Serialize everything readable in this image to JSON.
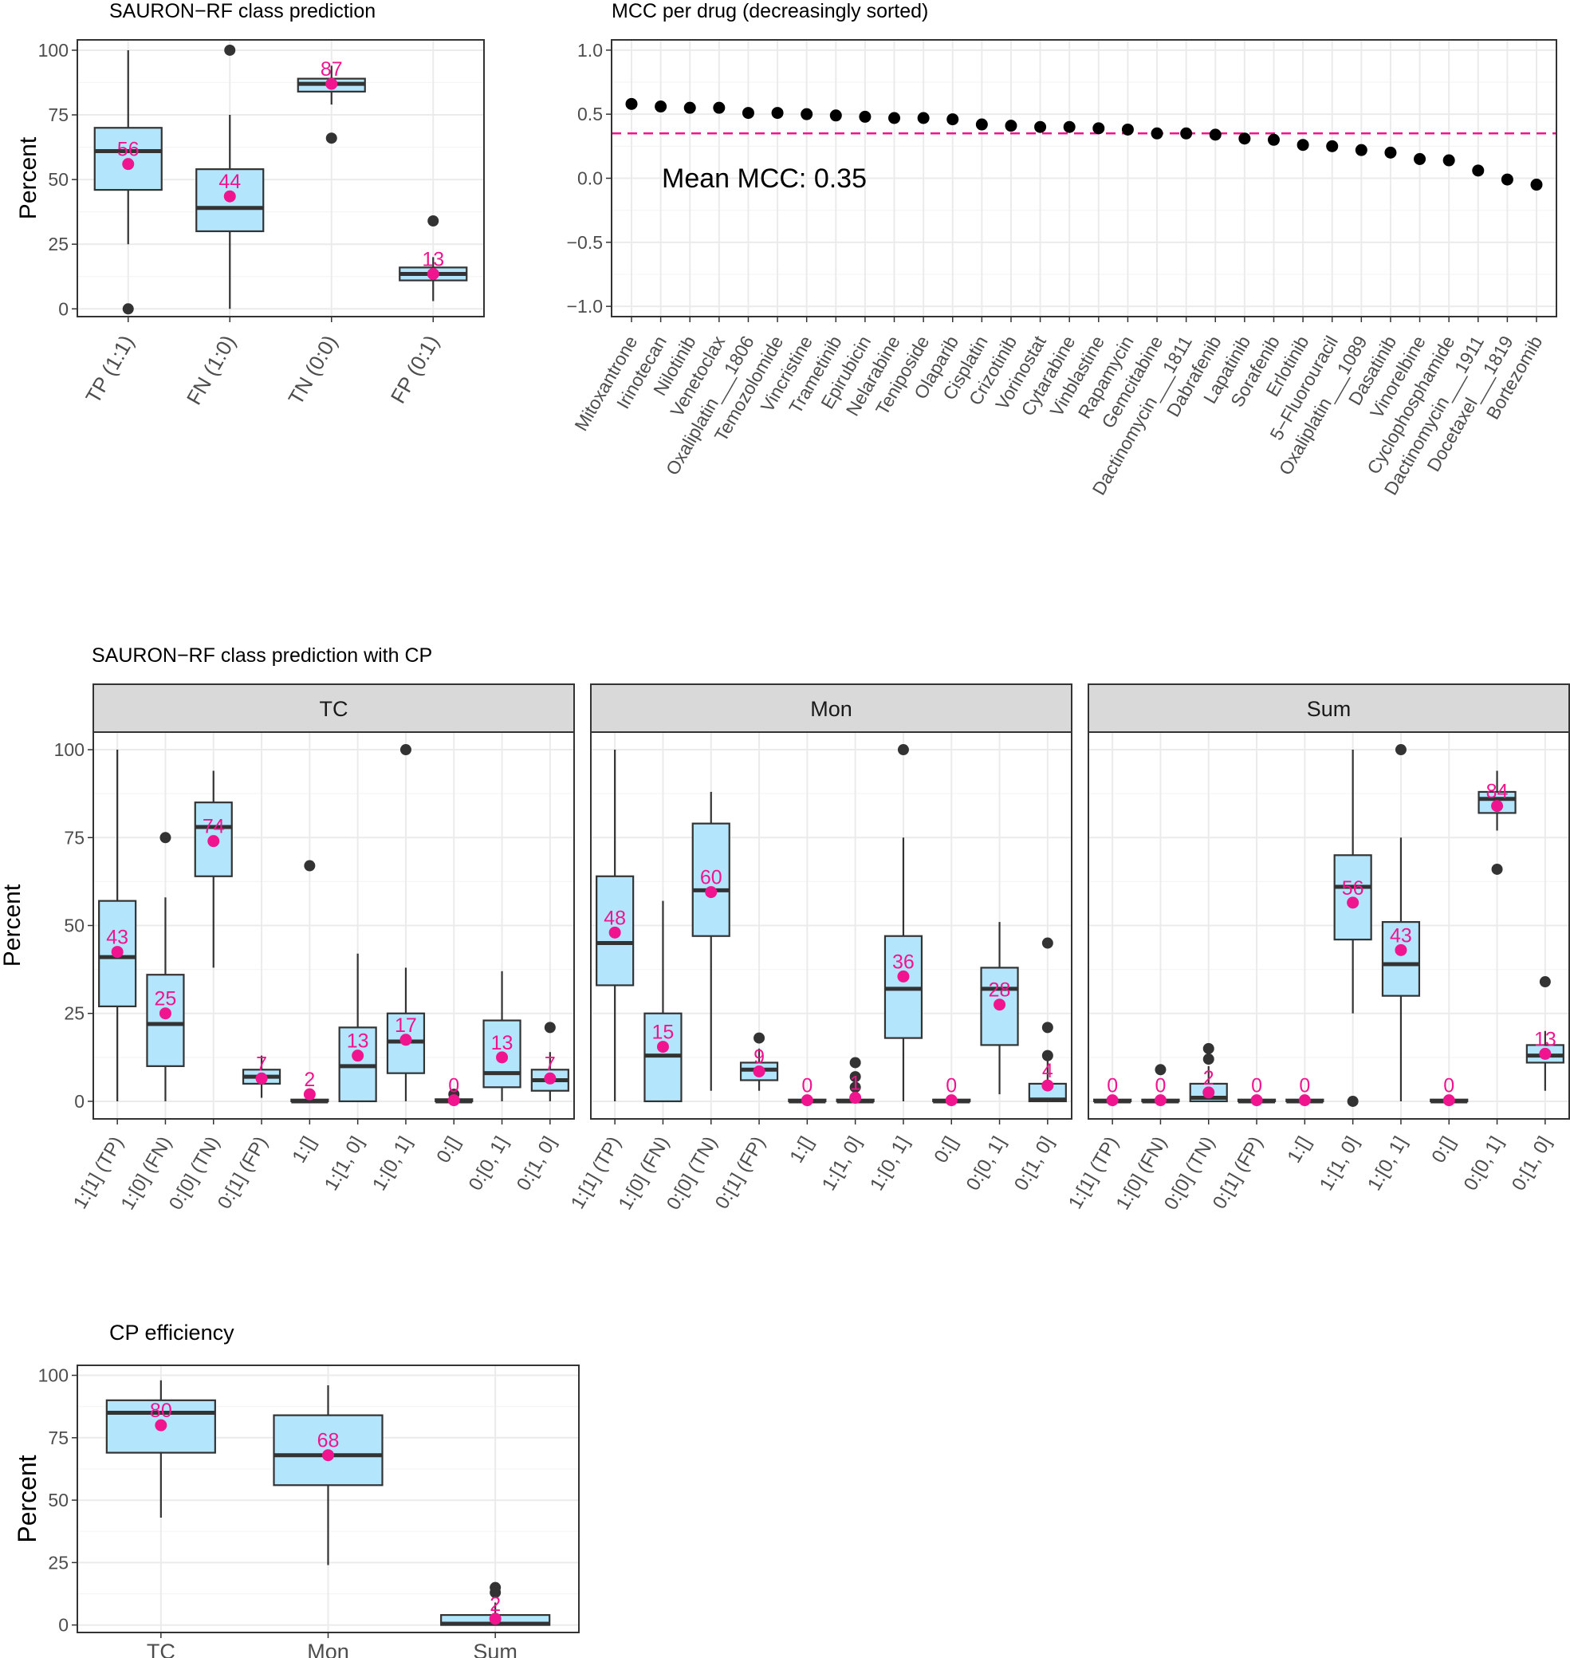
{
  "chart_data": [
    {
      "id": "class_prediction",
      "type": "box",
      "title": "SAURON−RF class prediction",
      "ylabel": "Percent",
      "ylim": [
        -3,
        104
      ],
      "yticks": [
        0,
        25,
        50,
        75,
        100
      ],
      "categories": [
        "TP (1:1)",
        "FN (1:0)",
        "TN (0:0)",
        "FP (0:1)"
      ],
      "boxes": [
        {
          "q1": 46,
          "median": 61,
          "q3": 70,
          "lo": 25,
          "hi": 100,
          "mean": 56,
          "label": "56",
          "outliers": [
            0
          ]
        },
        {
          "q1": 30,
          "median": 39,
          "q3": 54,
          "lo": 0,
          "hi": 75,
          "mean": 43.5,
          "label": "44",
          "outliers": [
            100
          ]
        },
        {
          "q1": 84,
          "median": 87,
          "q3": 89,
          "lo": 79,
          "hi": 94,
          "mean": 87,
          "label": "87",
          "outliers": [
            66
          ]
        },
        {
          "q1": 11,
          "median": 13.5,
          "q3": 16,
          "lo": 3,
          "hi": 20,
          "mean": 13.5,
          "label": "13",
          "outliers": [
            34
          ]
        }
      ]
    },
    {
      "id": "mcc_per_drug",
      "type": "scatter",
      "title": "MCC per drug (decreasingly sorted)",
      "ylabel": "",
      "ylim": [
        -1.08,
        1.08
      ],
      "yticks": [
        -1.0,
        -0.5,
        0.0,
        0.5,
        1.0
      ],
      "ytick_labels": [
        "−1.0",
        "−0.5",
        "0.0",
        "0.5",
        "1.0"
      ],
      "categories": [
        "Mitoxantrone",
        "Irinotecan",
        "Nilotinib",
        "Venetoclax",
        "Oxaliplatin___1806",
        "Temozolomide",
        "Vincristine",
        "Trametinib",
        "Epirubicin",
        "Nelarabine",
        "Teniposide",
        "Olaparib",
        "Cisplatin",
        "Crizotinib",
        "Vorinostat",
        "Cytarabine",
        "Vinblastine",
        "Rapamycin",
        "Gemcitabine",
        "Dactinomycin___1811",
        "Dabrafenib",
        "Lapatinib",
        "Sorafenib",
        "Erlotinib",
        "5−Fluorouracil",
        "Oxaliplatin___1089",
        "Dasatinib",
        "Vinorelbine",
        "Cyclophosphamide",
        "Dactinomycin___1911",
        "Docetaxel___1819",
        "Bortezomib"
      ],
      "values": [
        0.58,
        0.56,
        0.55,
        0.55,
        0.51,
        0.51,
        0.5,
        0.49,
        0.48,
        0.47,
        0.47,
        0.46,
        0.42,
        0.41,
        0.4,
        0.4,
        0.39,
        0.38,
        0.35,
        0.35,
        0.34,
        0.31,
        0.3,
        0.26,
        0.25,
        0.22,
        0.2,
        0.15,
        0.14,
        0.06,
        -0.01,
        -0.05
      ],
      "mean_line": 0.35,
      "annotation": "Mean MCC: 0.35"
    },
    {
      "id": "class_prediction_cp",
      "type": "box",
      "title": "SAURON−RF class prediction with CP",
      "ylabel": "Percent",
      "ylim": [
        -5,
        105
      ],
      "yticks": [
        0,
        25,
        50,
        75,
        100
      ],
      "categories": [
        "1:[1] (TP)",
        "1:[0] (FN)",
        "0:[0] (TN)",
        "0:[1] (FP)",
        "1:[]",
        "1:[1, 0]",
        "1:[0, 1]",
        "0:[]",
        "0:[0, 1]",
        "0:[1, 0]"
      ],
      "facets": [
        {
          "name": "TC",
          "boxes": [
            {
              "q1": 27,
              "median": 41,
              "q3": 57,
              "lo": 0,
              "hi": 100,
              "mean": 42.5,
              "label": "43",
              "outliers": []
            },
            {
              "q1": 10,
              "median": 22,
              "q3": 36,
              "lo": 0,
              "hi": 58,
              "mean": 25,
              "label": "25",
              "outliers": [
                75
              ]
            },
            {
              "q1": 64,
              "median": 78,
              "q3": 85,
              "lo": 38,
              "hi": 94,
              "mean": 74,
              "label": "74",
              "outliers": []
            },
            {
              "q1": 5,
              "median": 7,
              "q3": 9,
              "lo": 1,
              "hi": 13,
              "mean": 6.5,
              "label": "7",
              "outliers": []
            },
            {
              "q1": 0,
              "median": 0,
              "q3": 0.5,
              "lo": 0,
              "hi": 1,
              "mean": 2,
              "label": "2",
              "outliers": [
                67
              ]
            },
            {
              "q1": 0,
              "median": 10,
              "q3": 21,
              "lo": 0,
              "hi": 42,
              "mean": 13,
              "label": "13",
              "outliers": []
            },
            {
              "q1": 8,
              "median": 17,
              "q3": 25,
              "lo": 0,
              "hi": 38,
              "mean": 17.5,
              "label": "17",
              "outliers": [
                100
              ]
            },
            {
              "q1": 0,
              "median": 0,
              "q3": 0.6,
              "lo": 0,
              "hi": 1,
              "mean": 0.3,
              "label": "0",
              "outliers": [
                2
              ]
            },
            {
              "q1": 4,
              "median": 8,
              "q3": 23,
              "lo": 0,
              "hi": 37,
              "mean": 12.5,
              "label": "13",
              "outliers": []
            },
            {
              "q1": 3,
              "median": 6,
              "q3": 9,
              "lo": 0,
              "hi": 14,
              "mean": 6.5,
              "label": "7",
              "outliers": [
                21
              ]
            }
          ]
        },
        {
          "name": "Mon",
          "boxes": [
            {
              "q1": 33,
              "median": 45,
              "q3": 64,
              "lo": 0,
              "hi": 100,
              "mean": 48,
              "label": "48",
              "outliers": []
            },
            {
              "q1": 0,
              "median": 13,
              "q3": 25,
              "lo": 0,
              "hi": 57,
              "mean": 15.5,
              "label": "15",
              "outliers": []
            },
            {
              "q1": 47,
              "median": 60,
              "q3": 79,
              "lo": 3,
              "hi": 88,
              "mean": 59.5,
              "label": "60",
              "outliers": []
            },
            {
              "q1": 6,
              "median": 9,
              "q3": 11,
              "lo": 3,
              "hi": 15,
              "mean": 8.5,
              "label": "9",
              "outliers": [
                18
              ]
            },
            {
              "q1": 0,
              "median": 0,
              "q3": 0.5,
              "lo": 0,
              "hi": 1,
              "mean": 0.3,
              "label": "0",
              "outliers": []
            },
            {
              "q1": 0,
              "median": 0,
              "q3": 0.5,
              "lo": 0,
              "hi": 1,
              "mean": 1,
              "label": "1",
              "outliers": [
                4,
                7,
                11
              ]
            },
            {
              "q1": 18,
              "median": 32,
              "q3": 47,
              "lo": 0,
              "hi": 75,
              "mean": 35.5,
              "label": "36",
              "outliers": [
                100
              ]
            },
            {
              "q1": 0,
              "median": 0,
              "q3": 0.5,
              "lo": 0,
              "hi": 1,
              "mean": 0.3,
              "label": "0",
              "outliers": []
            },
            {
              "q1": 16,
              "median": 32,
              "q3": 38,
              "lo": 2,
              "hi": 51,
              "mean": 27.5,
              "label": "28",
              "outliers": []
            },
            {
              "q1": 0,
              "median": 0.5,
              "q3": 5,
              "lo": 0,
              "hi": 12,
              "mean": 4.5,
              "label": "4",
              "outliers": [
                13,
                21,
                45
              ]
            }
          ]
        },
        {
          "name": "Sum",
          "boxes": [
            {
              "q1": 0,
              "median": 0,
              "q3": 0.5,
              "lo": 0,
              "hi": 1,
              "mean": 0.3,
              "label": "0",
              "outliers": []
            },
            {
              "q1": 0,
              "median": 0,
              "q3": 0.5,
              "lo": 0,
              "hi": 1,
              "mean": 0.3,
              "label": "0",
              "outliers": [
                9
              ]
            },
            {
              "q1": 0,
              "median": 1,
              "q3": 5,
              "lo": 0,
              "hi": 10,
              "mean": 2.5,
              "label": "2",
              "outliers": [
                12,
                15
              ]
            },
            {
              "q1": 0,
              "median": 0,
              "q3": 0.5,
              "lo": 0,
              "hi": 1,
              "mean": 0.3,
              "label": "0",
              "outliers": []
            },
            {
              "q1": 0,
              "median": 0,
              "q3": 0.5,
              "lo": 0,
              "hi": 1,
              "mean": 0.3,
              "label": "0",
              "outliers": []
            },
            {
              "q1": 46,
              "median": 61,
              "q3": 70,
              "lo": 25,
              "hi": 100,
              "mean": 56.5,
              "label": "56",
              "outliers": [
                0
              ]
            },
            {
              "q1": 30,
              "median": 39,
              "q3": 51,
              "lo": 0,
              "hi": 75,
              "mean": 43,
              "label": "43",
              "outliers": [
                100
              ]
            },
            {
              "q1": 0,
              "median": 0,
              "q3": 0.5,
              "lo": 0,
              "hi": 1,
              "mean": 0.3,
              "label": "0",
              "outliers": []
            },
            {
              "q1": 82,
              "median": 86,
              "q3": 88,
              "lo": 77,
              "hi": 94,
              "mean": 84,
              "label": "84",
              "outliers": [
                66
              ]
            },
            {
              "q1": 11,
              "median": 13,
              "q3": 16,
              "lo": 3,
              "hi": 20,
              "mean": 13.5,
              "label": "13",
              "outliers": [
                34
              ]
            }
          ]
        }
      ]
    },
    {
      "id": "cp_efficiency",
      "type": "box",
      "title": "CP efficiency",
      "ylabel": "Percent",
      "ylim": [
        -3,
        104
      ],
      "yticks": [
        0,
        25,
        50,
        75,
        100
      ],
      "categories": [
        "TC",
        "Mon",
        "Sum"
      ],
      "boxes": [
        {
          "q1": 69,
          "median": 85,
          "q3": 90,
          "lo": 43,
          "hi": 98,
          "mean": 80,
          "label": "80",
          "outliers": []
        },
        {
          "q1": 56,
          "median": 68,
          "q3": 84,
          "lo": 24,
          "hi": 96,
          "mean": 68,
          "label": "68",
          "outliers": []
        },
        {
          "q1": 0,
          "median": 0.5,
          "q3": 4,
          "lo": 0,
          "hi": 9,
          "mean": 2.5,
          "label": "2",
          "outliers": [
            13,
            15
          ]
        }
      ]
    }
  ],
  "colors": {
    "box_fill": "#b3e5fc",
    "box_stroke": "#333333",
    "mean_point": "#f0158f",
    "outlier": "#333333",
    "mcc_point": "#000000",
    "mean_line": "#f0158f",
    "grid_major": "#ebebeb",
    "grid_minor": "#f5f5f5",
    "panel_border": "#333333",
    "strip_fill": "#d9d9d9",
    "text": "#000000",
    "tick_text": "#4d4d4d"
  }
}
